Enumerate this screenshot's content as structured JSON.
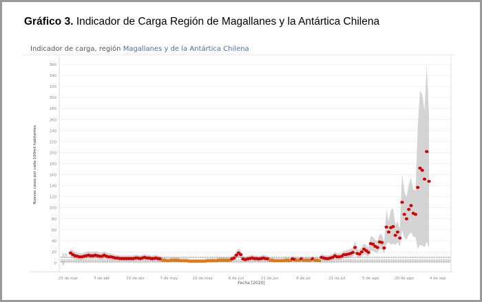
{
  "figure": {
    "label": "Gráfico 3.",
    "title": "Indicador de Carga Región de Magallanes y la Antártica Chilena"
  },
  "chart_data": {
    "type": "scatter",
    "title_prefix": "Indicador de carga, región ",
    "title_region": "Magallanes y de la Antártica Chilena",
    "xlabel": "Fecha [2020]",
    "ylabel": "Nuevos casos por cada 100mil habitantes",
    "ylim": [
      0,
      360
    ],
    "yticks": [
      0,
      20,
      40,
      60,
      80,
      100,
      120,
      140,
      160,
      180,
      200,
      220,
      240,
      260,
      280,
      300,
      320,
      340,
      360
    ],
    "xticks": [
      "23 de mar",
      "7 de abr",
      "22 de abr",
      "7 de may",
      "22 de may",
      "6 de jun",
      "21 de jun",
      "6 de jul",
      "21 de jul",
      "5 de ago",
      "20 de ago",
      "4 de sep"
    ],
    "xtick_days": [
      0,
      15,
      30,
      45,
      60,
      75,
      90,
      105,
      120,
      135,
      150,
      165
    ],
    "threshold_lines": [
      {
        "label": "10",
        "value": 10
      },
      {
        "label": "5",
        "value": 5
      }
    ],
    "orange_below": 6,
    "start_day": 6,
    "values": [
      18,
      15,
      13,
      12,
      11,
      11,
      12,
      13,
      14,
      13,
      13,
      14,
      13,
      12,
      12,
      14,
      12,
      11,
      11,
      10,
      9,
      9,
      8,
      8,
      8,
      8,
      8,
      8,
      8,
      9,
      9,
      8,
      9,
      10,
      9,
      9,
      8,
      8,
      9,
      8,
      7,
      5,
      5,
      4,
      4,
      5,
      5,
      5,
      5,
      4,
      4,
      4,
      4,
      3,
      3,
      3,
      3,
      3,
      3,
      3,
      3,
      4,
      4,
      4,
      4,
      4,
      5,
      5,
      5,
      5,
      5,
      5,
      7,
      9,
      14,
      18,
      15,
      7,
      6,
      7,
      8,
      9,
      8,
      8,
      7,
      8,
      9,
      8,
      7,
      5,
      5,
      4,
      4,
      4,
      4,
      4,
      5,
      5,
      4,
      7,
      6,
      5,
      5,
      7,
      5,
      5,
      5,
      5,
      7,
      5,
      5,
      4,
      10,
      9,
      8,
      8,
      9,
      10,
      13,
      11,
      11,
      12,
      15,
      15,
      16,
      17,
      19,
      28,
      17,
      16,
      20,
      25,
      22,
      19,
      35,
      34,
      30,
      28,
      38,
      37,
      27,
      65,
      56,
      64,
      66,
      50,
      56,
      45,
      110,
      88,
      80,
      97,
      104,
      90,
      88,
      137,
      172,
      168,
      152,
      202,
      148
    ],
    "colors": {
      "point": "#d40000",
      "point_low": "#e07a10",
      "band": "#cccccc",
      "threshold": "#444444"
    }
  }
}
